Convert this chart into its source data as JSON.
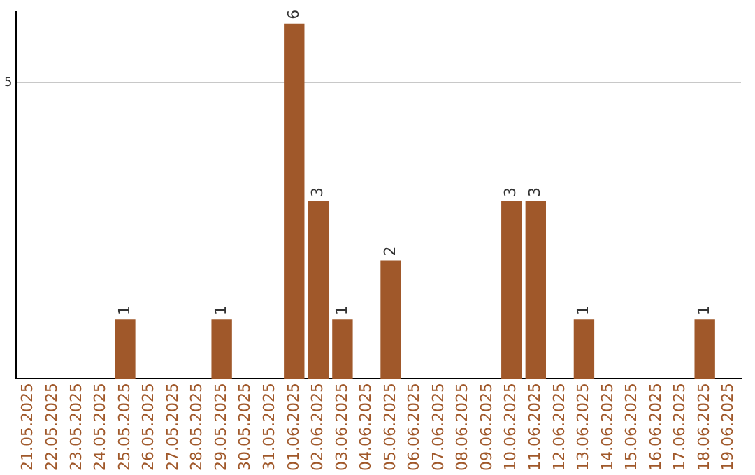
{
  "chart_data": {
    "type": "bar",
    "categories": [
      "21.05.2025",
      "22.05.2025",
      "23.05.2025",
      "24.05.2025",
      "25.05.2025",
      "26.05.2025",
      "27.05.2025",
      "28.05.2025",
      "29.05.2025",
      "30.05.2025",
      "31.05.2025",
      "01.06.2025",
      "02.06.2025",
      "03.06.2025",
      "04.06.2025",
      "05.06.2025",
      "06.06.2025",
      "07.06.2025",
      "08.06.2025",
      "09.06.2025",
      "10.06.2025",
      "11.06.2025",
      "12.06.2025",
      "13.06.2025",
      "14.06.2025",
      "15.06.2025",
      "16.06.2025",
      "17.06.2025",
      "18.06.2025",
      "19.06.2025"
    ],
    "values": [
      0,
      0,
      0,
      0,
      1,
      0,
      0,
      0,
      1,
      0,
      0,
      6,
      3,
      1,
      0,
      2,
      0,
      0,
      0,
      0,
      3,
      3,
      0,
      1,
      0,
      0,
      0,
      0,
      1,
      0
    ],
    "value_labels": [
      null,
      null,
      null,
      null,
      "1",
      null,
      null,
      null,
      "1",
      null,
      null,
      "6",
      "3",
      "1",
      null,
      "2",
      null,
      null,
      null,
      null,
      "3",
      "3",
      null,
      "1",
      null,
      null,
      null,
      null,
      "1",
      null
    ],
    "color": "#a0582a",
    "ylim": [
      0,
      6.2
    ],
    "yticks": [
      5
    ],
    "grid": "y",
    "legend": false
  }
}
